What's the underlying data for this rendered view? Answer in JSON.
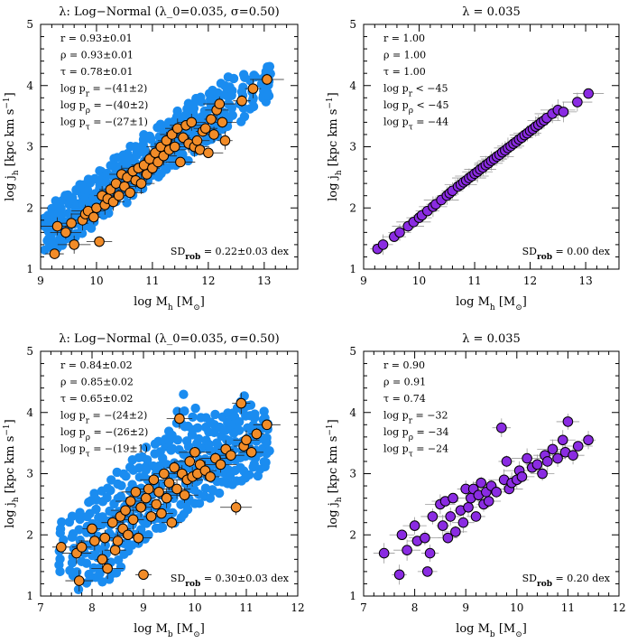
{
  "figure": {
    "panels": [
      {
        "id": "top-left",
        "title": "λ: Log−Normal (λ₀=0.035, σ=0.50)",
        "xlabel": "log M_h [M_⊙]",
        "ylabel": "log j_h [kpc km s⁻¹]",
        "xlim": [
          9,
          13.6
        ],
        "ylim": [
          1,
          5
        ],
        "xticks": [
          9,
          10,
          11,
          12,
          13
        ],
        "yticks": [
          1,
          2,
          3,
          4,
          5
        ],
        "stats": [
          "r = 0.93±0.01",
          "ρ = 0.93±0.01",
          "τ = 0.78±0.01",
          "log p_r = −(41±2)",
          "log p_ρ = −(40±2)",
          "log p_τ = −(27±1)"
        ],
        "sd_label": "SD_rob = 0.22±0.03 dex",
        "mode": "lognormal",
        "xvar": "Mh"
      },
      {
        "id": "top-right",
        "title": "λ = 0.035",
        "xlabel": "log M_h [M_⊙]",
        "ylabel": "log j_h [kpc km s⁻¹]",
        "xlim": [
          9,
          13.6
        ],
        "ylim": [
          1,
          5
        ],
        "xticks": [
          9,
          10,
          11,
          12,
          13
        ],
        "yticks": [
          1,
          2,
          3,
          4,
          5
        ],
        "stats": [
          "r = 1.00",
          "ρ = 1.00",
          "τ = 1.00",
          "log p_r < −45",
          "log p_ρ < −45",
          "log p_τ = −44"
        ],
        "sd_label": "SD_rob = 0.00 dex",
        "mode": "constant",
        "xvar": "Mh"
      },
      {
        "id": "bottom-left",
        "title": "λ: Log−Normal (λ₀=0.035, σ=0.50)",
        "xlabel": "log M_b [M_⊙]",
        "ylabel": "log j_h [kpc km s⁻¹]",
        "xlim": [
          7,
          12
        ],
        "ylim": [
          1,
          5
        ],
        "xticks": [
          7,
          8,
          9,
          10,
          11,
          12
        ],
        "yticks": [
          1,
          2,
          3,
          4,
          5
        ],
        "stats": [
          "r = 0.84±0.02",
          "ρ = 0.85±0.02",
          "τ = 0.65±0.02",
          "log p_r = −(24±2)",
          "log p_ρ = −(26±2)",
          "log p_τ = −(19±1)"
        ],
        "sd_label": "SD_rob = 0.30±0.03 dex",
        "mode": "lognormal",
        "xvar": "Mb"
      },
      {
        "id": "bottom-right",
        "title": "λ = 0.035",
        "xlabel": "log M_b [M_⊙]",
        "ylabel": "log j_h [kpc km s⁻¹]",
        "xlim": [
          7,
          12
        ],
        "ylim": [
          1,
          5
        ],
        "xticks": [
          7,
          8,
          9,
          10,
          11,
          12
        ],
        "yticks": [
          1,
          2,
          3,
          4,
          5
        ],
        "stats": [
          "r = 0.90",
          "ρ = 0.91",
          "τ = 0.74",
          "log p_r = −32",
          "log p_ρ = −34",
          "log p_τ = −24"
        ],
        "sd_label": "SD_rob = 0.20 dex",
        "mode": "constant",
        "xvar": "Mb"
      }
    ]
  },
  "chart_data": [
    {
      "type": "scatter",
      "title": "λ: Log−Normal (λ₀=0.035, σ=0.50)",
      "xlabel": "log M_h [M_⊙]",
      "ylabel": "log j_h [kpc km s⁻¹]",
      "xlim": [
        9,
        13.6
      ],
      "ylim": [
        1,
        5
      ],
      "series": [
        {
          "name": "",
          "color": "#1a8cf0",
          "x": [
            9.1,
            9.2,
            9.3,
            9.4,
            9.5,
            9.6,
            9.7,
            9.8,
            9.9,
            10.0,
            10.1,
            10.2,
            10.3,
            10.4,
            10.5,
            10.6,
            10.7,
            10.8,
            10.9,
            11.0,
            11.1,
            11.2,
            11.3,
            11.4,
            11.5,
            11.6,
            11.7,
            11.8,
            11.9,
            12.0,
            12.1,
            12.2,
            12.3,
            12.4,
            12.6,
            12.8,
            13.0,
            13.1
          ],
          "y_low": [
            1.3,
            1.3,
            1.3,
            1.4,
            1.5,
            1.5,
            1.6,
            1.7,
            1.7,
            1.8,
            1.9,
            1.9,
            2.0,
            2.1,
            2.1,
            2.2,
            2.3,
            2.3,
            2.4,
            2.5,
            2.5,
            2.6,
            2.6,
            2.7,
            2.8,
            2.8,
            2.9,
            3.0,
            3.0,
            3.1,
            3.1,
            3.2,
            3.3,
            3.3,
            3.4,
            3.6,
            3.7,
            3.8
          ],
          "y_high": [
            1.9,
            2.0,
            2.1,
            2.2,
            2.2,
            2.3,
            2.4,
            2.4,
            2.5,
            2.6,
            2.6,
            2.7,
            2.8,
            2.8,
            2.9,
            3.0,
            3.0,
            3.1,
            3.2,
            3.2,
            3.3,
            3.4,
            3.4,
            3.5,
            3.6,
            3.6,
            3.7,
            3.8,
            3.8,
            3.9,
            3.9,
            4.0,
            4.1,
            4.1,
            4.2,
            4.2,
            4.3,
            4.3
          ]
        },
        {
          "name": "",
          "color": "#f28c28",
          "x": [
            9.25,
            9.3,
            9.45,
            9.55,
            9.6,
            9.75,
            9.8,
            9.85,
            9.95,
            10.0,
            10.05,
            10.1,
            10.15,
            10.2,
            10.25,
            10.3,
            10.35,
            10.4,
            10.45,
            10.5,
            10.55,
            10.6,
            10.65,
            10.7,
            10.75,
            10.8,
            10.85,
            10.9,
            10.95,
            11.0,
            11.05,
            11.1,
            11.15,
            11.2,
            11.25,
            11.3,
            11.35,
            11.4,
            11.45,
            11.5,
            11.55,
            11.6,
            11.65,
            11.7,
            11.75,
            11.8,
            11.85,
            11.9,
            11.95,
            12.0,
            12.05,
            12.1,
            12.15,
            12.2,
            12.25,
            12.3,
            12.6,
            12.8,
            13.05
          ],
          "y": [
            1.25,
            1.7,
            1.6,
            1.75,
            1.4,
            1.8,
            1.9,
            1.95,
            1.85,
            2.0,
            1.45,
            2.2,
            2.05,
            2.15,
            2.3,
            2.1,
            2.4,
            2.2,
            2.55,
            2.35,
            2.5,
            2.25,
            2.6,
            2.45,
            2.65,
            2.4,
            2.7,
            2.55,
            2.8,
            2.65,
            2.9,
            2.75,
            3.0,
            2.85,
            3.1,
            2.95,
            3.2,
            3.0,
            3.3,
            2.75,
            3.15,
            3.35,
            3.05,
            3.4,
            3.0,
            3.1,
            2.95,
            3.25,
            3.3,
            2.9,
            3.45,
            3.2,
            3.6,
            3.7,
            3.4,
            3.1,
            3.75,
            3.95,
            4.1
          ]
        }
      ]
    },
    {
      "type": "scatter",
      "title": "λ = 0.035",
      "xlabel": "log M_h [M_⊙]",
      "ylabel": "log j_h [kpc km s⁻¹]",
      "xlim": [
        9,
        13.6
      ],
      "ylim": [
        1,
        5
      ],
      "series": [
        {
          "name": "",
          "color": "#8a2be2",
          "x": [
            9.25,
            9.35,
            9.55,
            9.65,
            9.8,
            9.9,
            10.0,
            10.05,
            10.15,
            10.25,
            10.3,
            10.4,
            10.5,
            10.55,
            10.6,
            10.7,
            10.75,
            10.8,
            10.85,
            10.9,
            10.95,
            11.0,
            11.05,
            11.1,
            11.15,
            11.2,
            11.25,
            11.3,
            11.35,
            11.4,
            11.45,
            11.5,
            11.55,
            11.6,
            11.65,
            11.7,
            11.75,
            11.8,
            11.85,
            11.9,
            11.95,
            12.0,
            12.05,
            12.1,
            12.15,
            12.2,
            12.25,
            12.3,
            12.4,
            12.5,
            12.6,
            12.85,
            13.05
          ],
          "y": [
            1.33,
            1.4,
            1.53,
            1.6,
            1.7,
            1.77,
            1.84,
            1.88,
            1.95,
            2.02,
            2.06,
            2.13,
            2.2,
            2.24,
            2.28,
            2.35,
            2.38,
            2.42,
            2.45,
            2.49,
            2.52,
            2.56,
            2.59,
            2.63,
            2.66,
            2.7,
            2.73,
            2.77,
            2.8,
            2.84,
            2.87,
            2.91,
            2.94,
            2.98,
            3.01,
            3.05,
            3.08,
            3.12,
            3.15,
            3.19,
            3.22,
            3.26,
            3.29,
            3.33,
            3.36,
            3.4,
            3.43,
            3.47,
            3.54,
            3.6,
            3.57,
            3.73,
            3.87
          ]
        }
      ]
    },
    {
      "type": "scatter",
      "title": "λ: Log−Normal (λ₀=0.035, σ=0.50)",
      "xlabel": "log M_b [M_⊙]",
      "ylabel": "log j_h [kpc km s⁻¹]",
      "xlim": [
        7,
        12
      ],
      "ylim": [
        1,
        5
      ],
      "series": [
        {
          "name": "",
          "color": "#1a8cf0",
          "x": [
            7.4,
            7.6,
            7.75,
            7.9,
            8.0,
            8.1,
            8.2,
            8.3,
            8.4,
            8.5,
            8.6,
            8.7,
            8.8,
            8.9,
            9.0,
            9.1,
            9.2,
            9.3,
            9.4,
            9.5,
            9.6,
            9.7,
            9.8,
            9.9,
            10.0,
            10.1,
            10.2,
            10.3,
            10.4,
            10.5,
            10.6,
            10.7,
            10.8,
            10.9,
            11.0,
            11.1,
            11.2,
            11.3,
            11.4
          ],
          "y_low": [
            1.4,
            1.3,
            1.1,
            1.2,
            1.3,
            1.3,
            1.2,
            1.3,
            1.4,
            1.4,
            1.5,
            1.7,
            1.8,
            1.9,
            1.9,
            2.0,
            2.1,
            2.1,
            2.1,
            2.3,
            2.2,
            2.3,
            2.3,
            2.4,
            2.5,
            2.5,
            2.6,
            2.6,
            2.7,
            2.7,
            2.8,
            2.8,
            2.9,
            2.9,
            2.9,
            3.0,
            3.0,
            3.1,
            3.1
          ],
          "y_high": [
            2.2,
            2.3,
            2.4,
            2.5,
            2.7,
            2.6,
            2.7,
            2.8,
            2.9,
            3.0,
            3.0,
            3.1,
            3.2,
            3.3,
            3.3,
            3.4,
            3.5,
            3.5,
            3.6,
            3.7,
            3.8,
            4.0,
            4.3,
            3.8,
            4.1,
            3.9,
            3.9,
            3.8,
            4.0,
            3.9,
            4.0,
            4.0,
            4.1,
            4.2,
            4.3,
            4.1,
            4.0,
            4.0,
            3.9
          ]
        },
        {
          "name": "",
          "color": "#f28c28",
          "x": [
            7.4,
            7.7,
            7.75,
            7.8,
            8.0,
            8.05,
            8.2,
            8.25,
            8.3,
            8.4,
            8.45,
            8.5,
            8.55,
            8.6,
            8.65,
            8.7,
            8.75,
            8.8,
            8.85,
            8.9,
            8.95,
            9.0,
            9.05,
            9.1,
            9.15,
            9.2,
            9.25,
            9.3,
            9.35,
            9.4,
            9.45,
            9.5,
            9.55,
            9.6,
            9.65,
            9.7,
            9.75,
            9.8,
            9.85,
            9.9,
            9.95,
            10.0,
            10.05,
            10.1,
            10.2,
            10.3,
            10.4,
            10.5,
            10.6,
            10.7,
            10.8,
            10.9,
            10.95,
            11.0,
            11.1,
            11.2,
            11.4
          ],
          "y": [
            1.8,
            1.7,
            1.25,
            1.8,
            2.1,
            1.9,
            1.6,
            1.95,
            1.45,
            2.2,
            1.75,
            1.9,
            2.3,
            2.1,
            2.4,
            2.0,
            2.55,
            2.25,
            2.7,
            1.95,
            2.45,
            1.35,
            2.6,
            2.75,
            2.3,
            2.9,
            2.5,
            2.7,
            2.35,
            3.0,
            2.6,
            2.85,
            2.2,
            3.1,
            2.75,
            3.9,
            3.0,
            2.65,
            2.9,
            3.2,
            2.95,
            3.35,
            3.0,
            3.15,
            3.05,
            2.95,
            3.25,
            3.15,
            3.4,
            3.3,
            2.45,
            4.15,
            3.45,
            3.55,
            3.35,
            3.65,
            3.8
          ]
        }
      ]
    },
    {
      "type": "scatter",
      "title": "λ = 0.035",
      "xlabel": "log M_b [M_⊙]",
      "ylabel": "log j_h [kpc km s⁻¹]",
      "xlim": [
        7,
        12
      ],
      "ylim": [
        1,
        5
      ],
      "series": [
        {
          "name": "",
          "color": "#8a2be2",
          "x": [
            7.4,
            7.7,
            7.75,
            7.85,
            8.0,
            8.05,
            8.2,
            8.25,
            8.3,
            8.35,
            8.5,
            8.55,
            8.6,
            8.65,
            8.7,
            8.75,
            8.8,
            8.9,
            8.95,
            9.0,
            9.05,
            9.1,
            9.15,
            9.2,
            9.25,
            9.3,
            9.35,
            9.4,
            9.45,
            9.5,
            9.6,
            9.7,
            9.75,
            9.8,
            9.85,
            9.9,
            10.0,
            10.05,
            10.1,
            10.2,
            10.3,
            10.4,
            10.5,
            10.55,
            10.6,
            10.7,
            10.8,
            10.9,
            10.95,
            11.0,
            11.1,
            11.2,
            11.4
          ],
          "y": [
            1.7,
            1.35,
            2.0,
            1.75,
            2.15,
            1.9,
            1.95,
            1.4,
            1.7,
            2.3,
            2.5,
            2.15,
            2.55,
            1.95,
            2.3,
            2.6,
            2.05,
            2.4,
            2.2,
            2.75,
            2.45,
            2.6,
            2.75,
            2.3,
            2.65,
            2.85,
            2.5,
            2.7,
            2.55,
            2.8,
            2.7,
            3.75,
            2.9,
            3.2,
            2.75,
            2.85,
            2.9,
            3.05,
            2.95,
            3.25,
            3.1,
            3.15,
            3.0,
            3.3,
            3.2,
            3.4,
            3.25,
            3.55,
            3.35,
            3.85,
            3.3,
            3.45,
            3.55
          ]
        }
      ]
    }
  ]
}
